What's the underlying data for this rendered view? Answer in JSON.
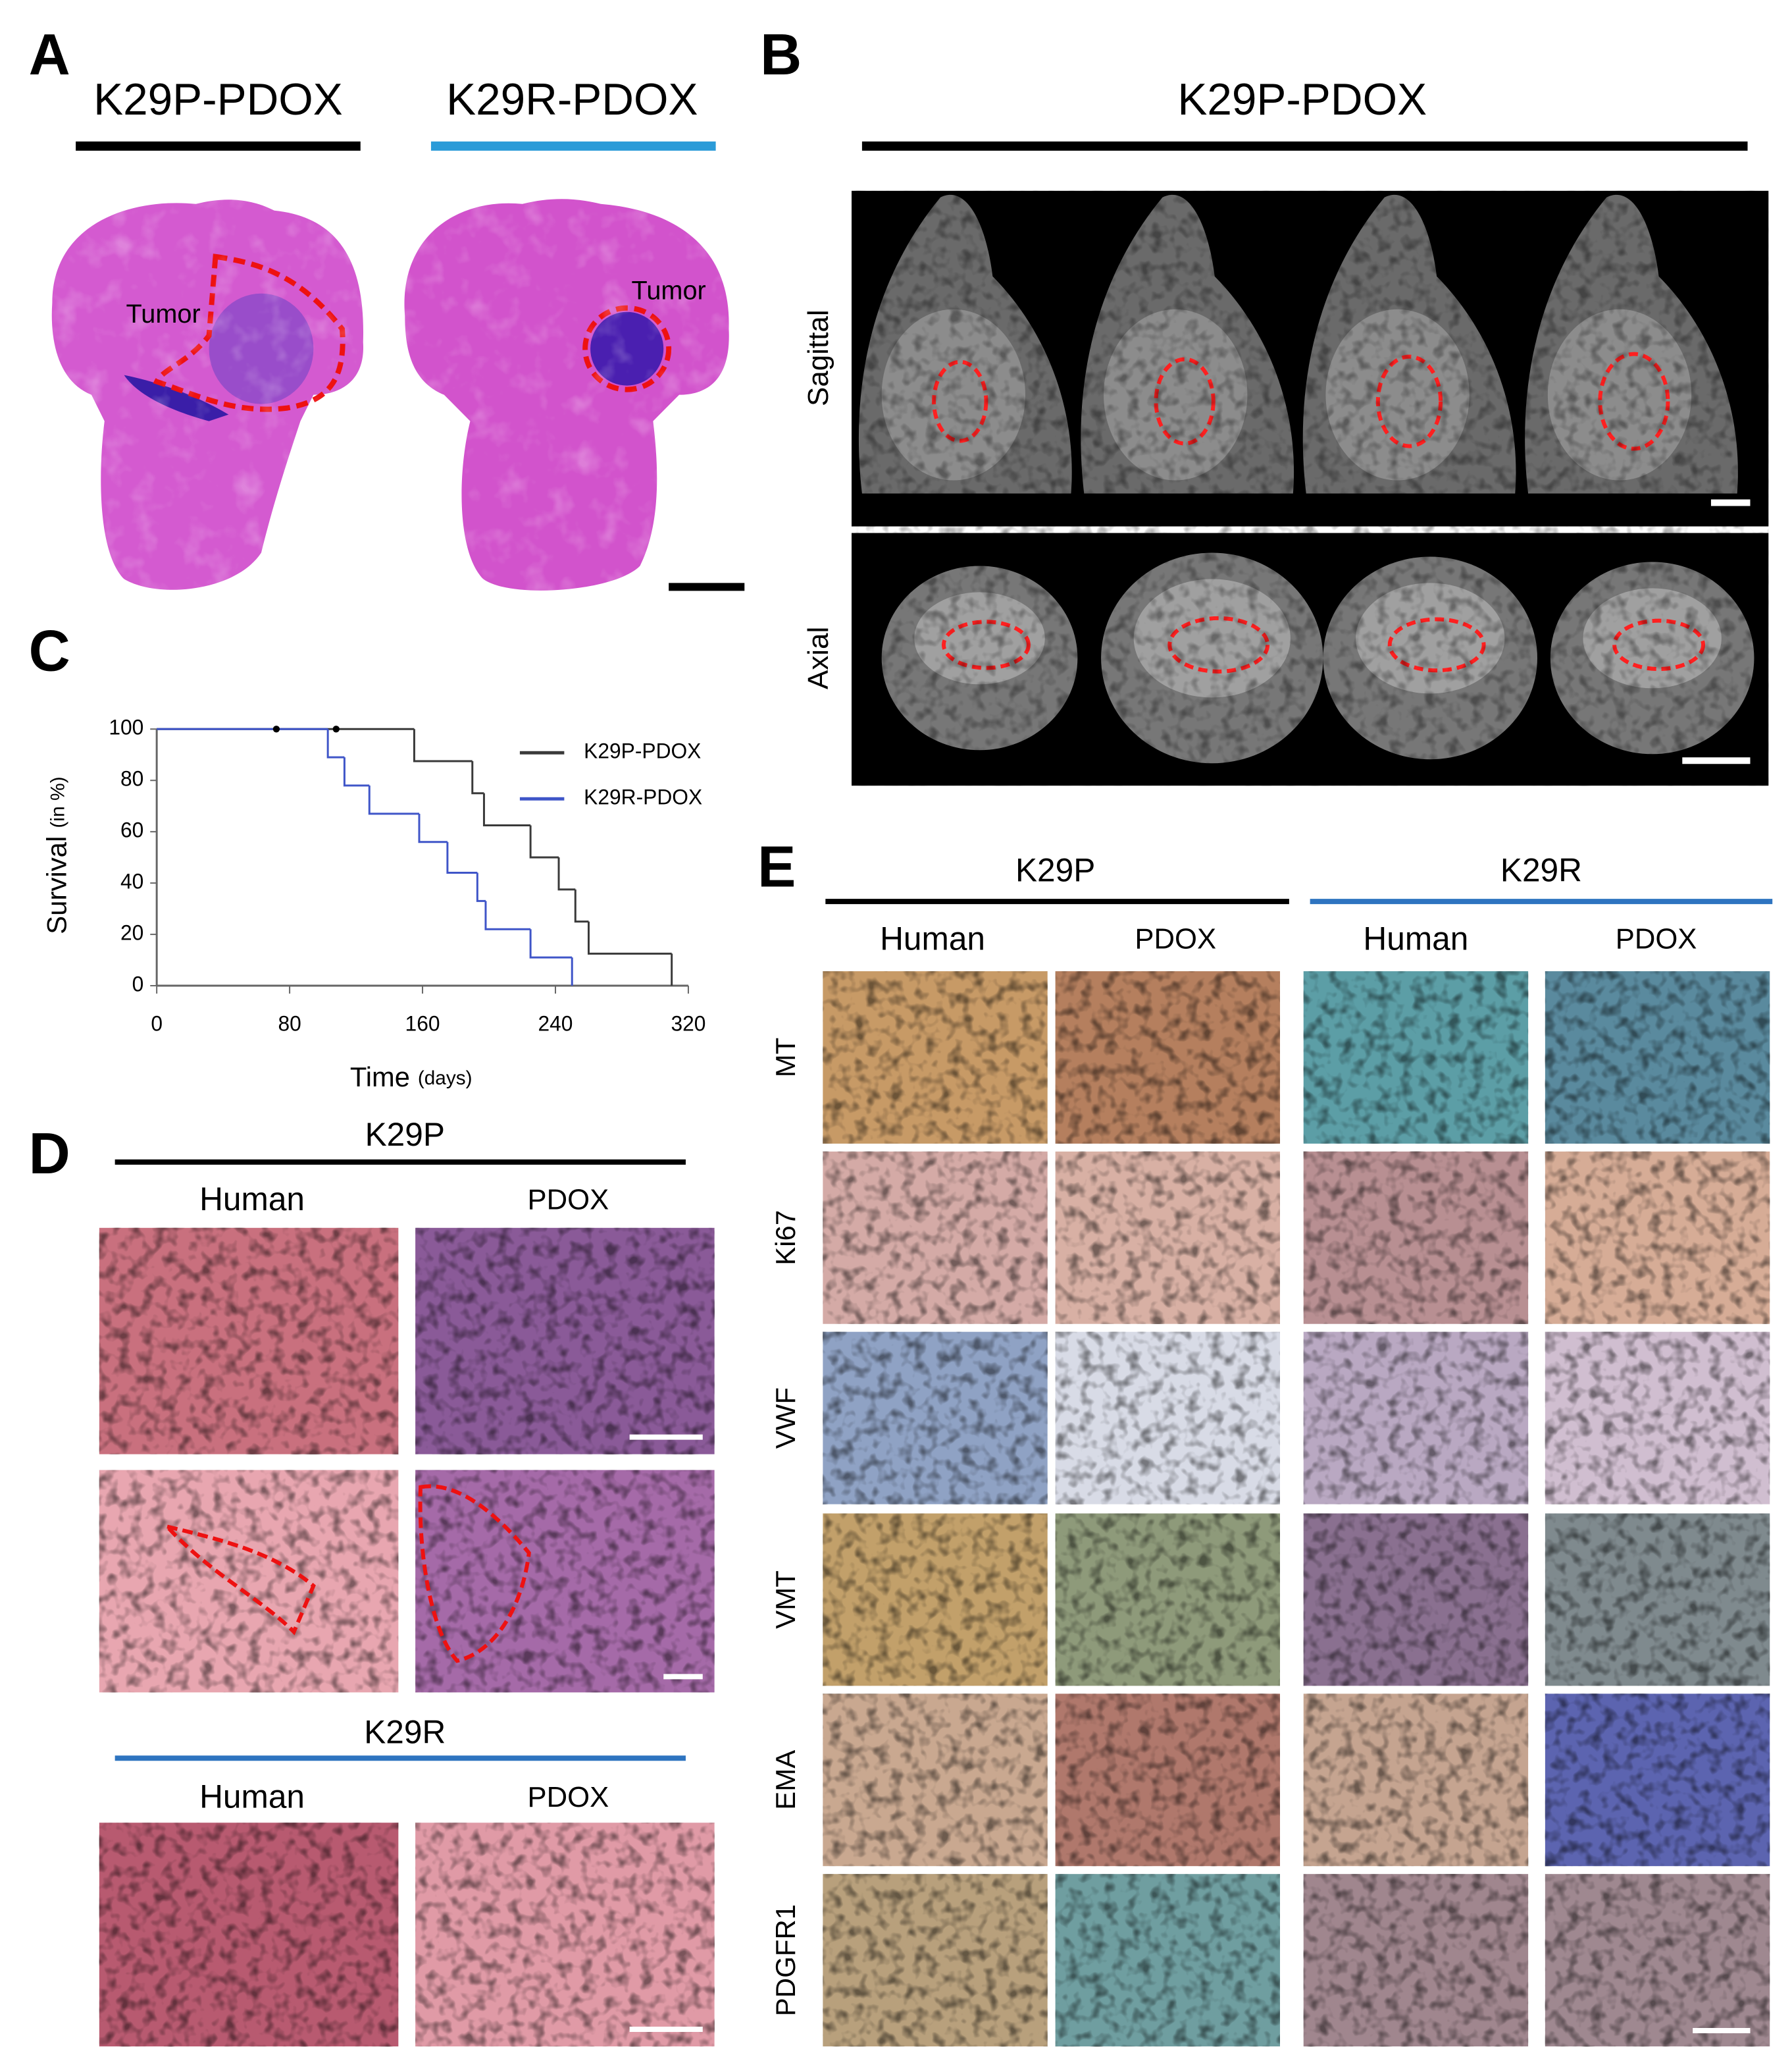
{
  "panel_A": {
    "label": "A",
    "groups": [
      "K29P-PDOX",
      "K29R-PDOX"
    ],
    "annotations": [
      "Tumor",
      "Tumor"
    ]
  },
  "panel_B": {
    "label": "B",
    "title": "K29P-PDOX",
    "rows": [
      "Sagittal",
      "Axial"
    ]
  },
  "chart_data": {
    "type": "step",
    "panel_label": "C",
    "xlabel": "Time",
    "xlabel_unit": "(days)",
    "ylabel": "Survival",
    "ylabel_unit": "(in %)",
    "xlim": [
      0,
      320
    ],
    "xticks": [
      0,
      80,
      160,
      240,
      320
    ],
    "ylim": [
      0,
      100
    ],
    "yticks": [
      0,
      20,
      40,
      60,
      80,
      100
    ],
    "legend": "upper right",
    "series": [
      {
        "name": "K29P-PDOX",
        "color": "#3a3a3a",
        "x": [
          0,
          155,
          190,
          197,
          225,
          242,
          252,
          260,
          310
        ],
        "values": [
          100,
          87.5,
          75,
          62.5,
          50,
          37.5,
          25,
          12.5,
          0
        ]
      },
      {
        "name": "K29R-PDOX",
        "color": "#3f55c8",
        "x": [
          0,
          103,
          113,
          128,
          158,
          175,
          193,
          198,
          225,
          250
        ],
        "values": [
          100,
          89,
          78,
          67,
          56,
          44,
          33,
          22,
          11,
          0
        ]
      }
    ],
    "censor_marks": {
      "x": [
        72,
        108
      ],
      "values": [
        100,
        100
      ]
    }
  },
  "panel_D": {
    "label": "D",
    "groups": [
      {
        "name": "K29P",
        "columns": [
          "Human",
          "PDOX"
        ]
      },
      {
        "name": "K29R",
        "columns": [
          "Human",
          "PDOX"
        ]
      }
    ]
  },
  "panel_E": {
    "label": "E",
    "groups": [
      {
        "name": "K29P",
        "columns": [
          "Human",
          "PDOX"
        ]
      },
      {
        "name": "K29R",
        "columns": [
          "Human",
          "PDOX"
        ]
      }
    ],
    "rows": [
      "MT",
      "Ki67",
      "VWF",
      "VMT",
      "EMA",
      "PDGFR1"
    ]
  }
}
